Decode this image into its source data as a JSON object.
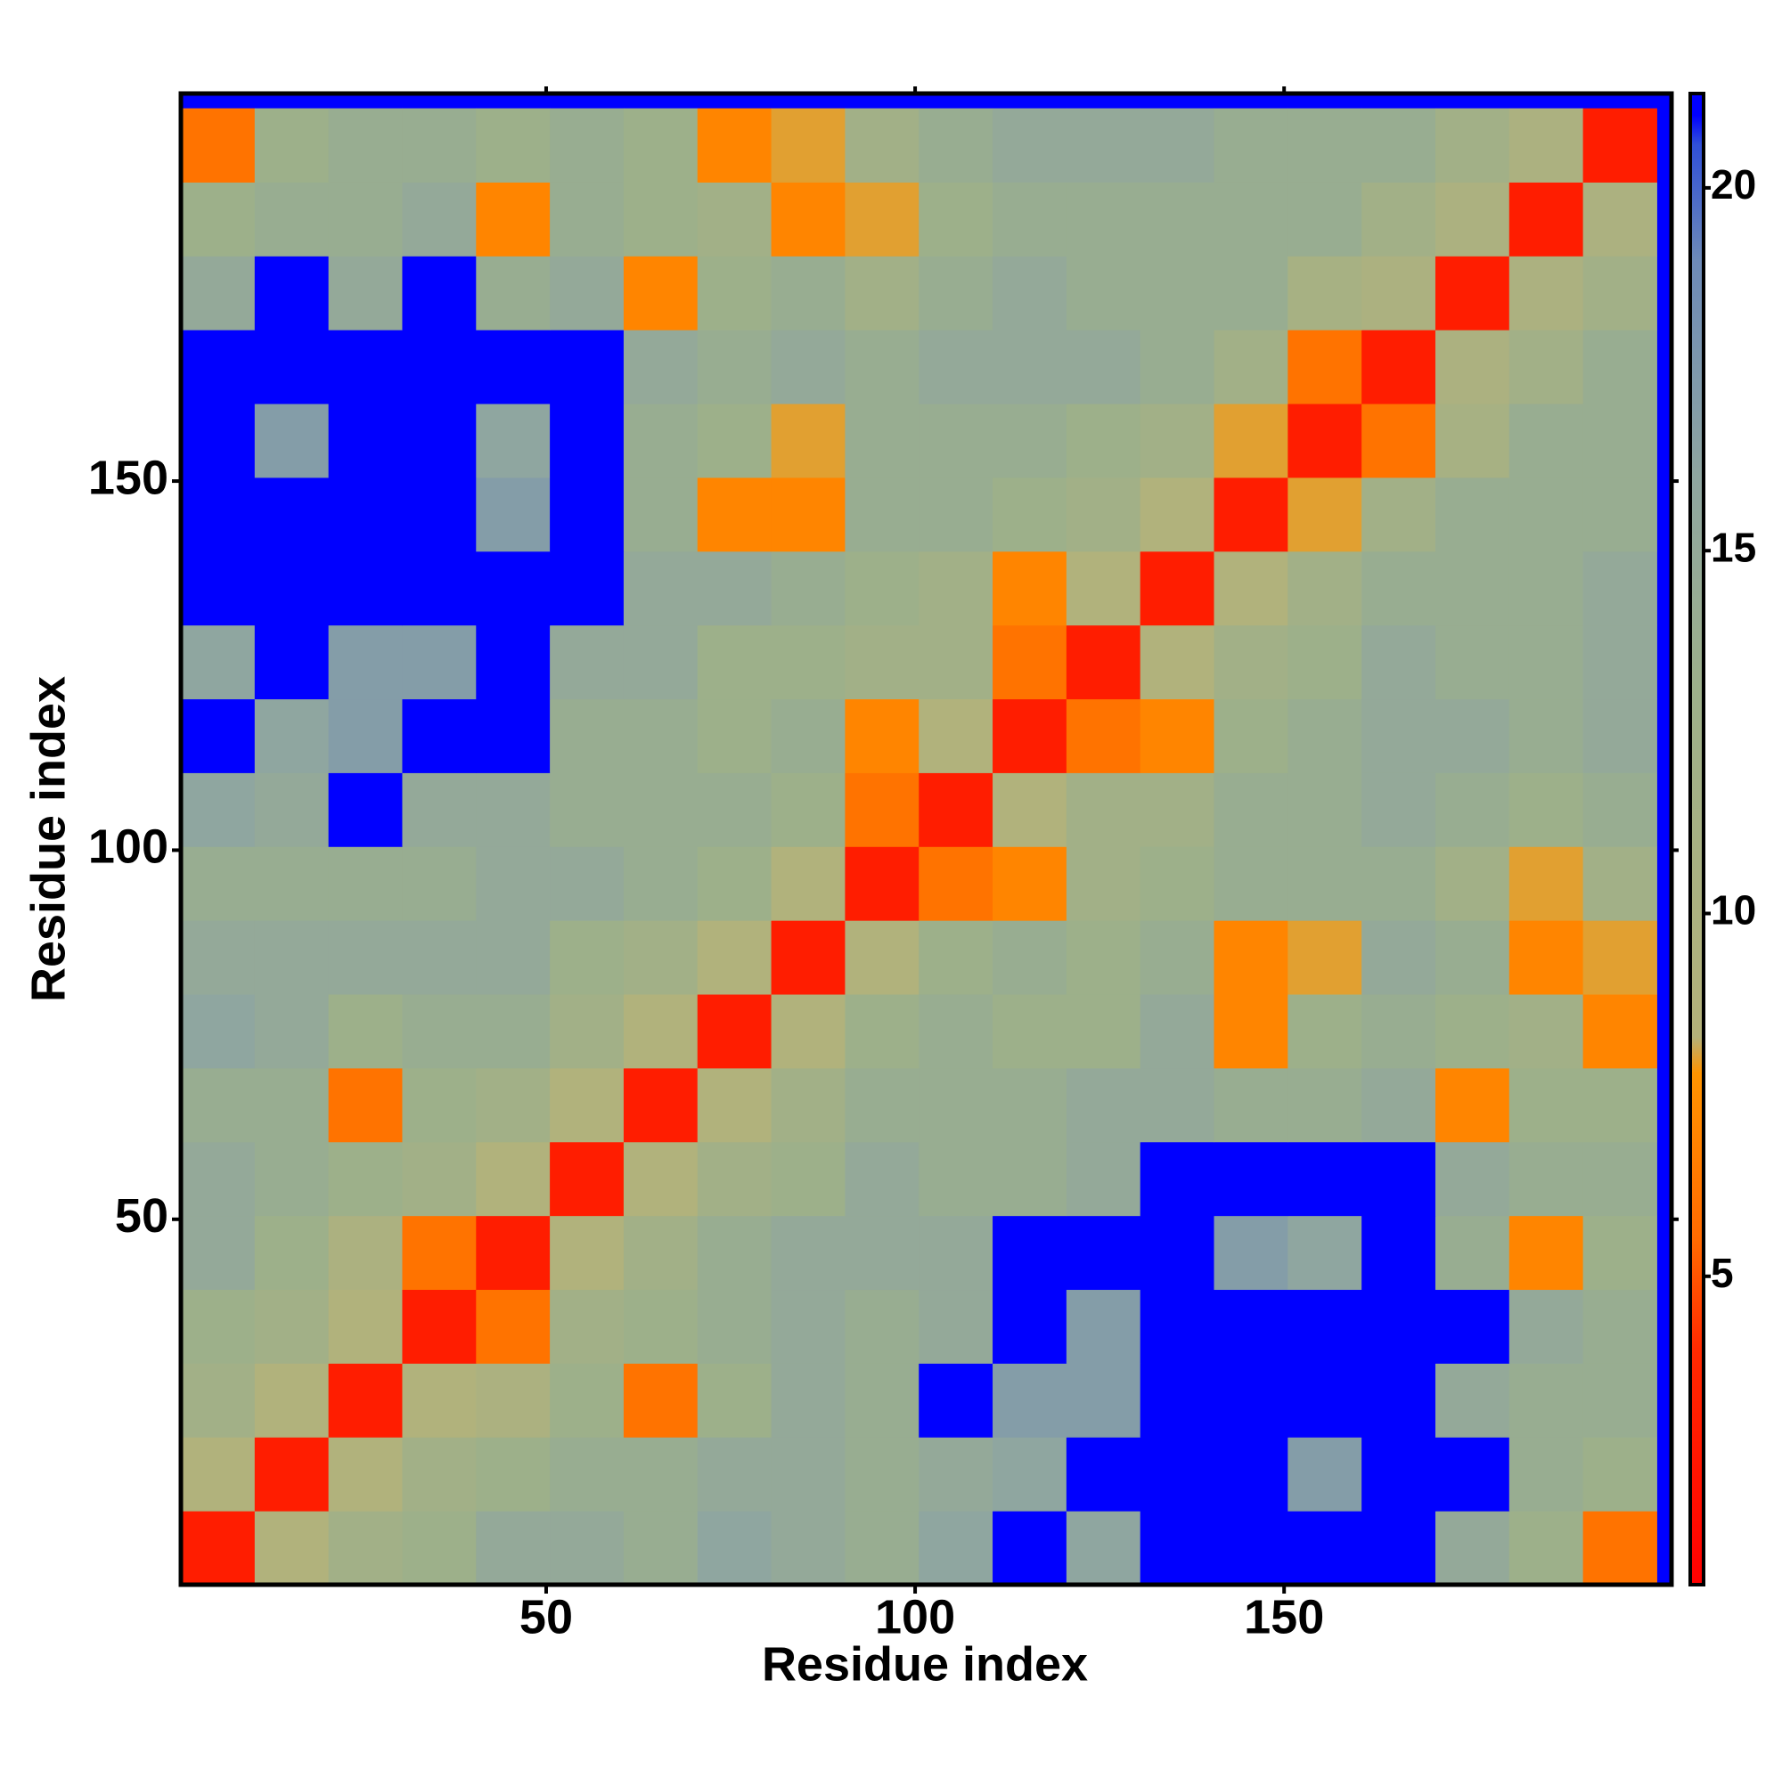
{
  "chart_data": {
    "type": "heatmap",
    "xlabel": "Residue index",
    "ylabel": "Residue index",
    "x": [
      5.5,
      15.5,
      25.5,
      35.5,
      45.5,
      55.5,
      65.5,
      75.5,
      85.5,
      95.5,
      105.5,
      115.5,
      125.5,
      135.5,
      145.5,
      155.5,
      165.5,
      175.5,
      185.5,
      195.5
    ],
    "y": [
      5.5,
      15.5,
      25.5,
      35.5,
      45.5,
      55.5,
      65.5,
      75.5,
      85.5,
      95.5,
      105.5,
      115.5,
      125.5,
      135.5,
      145.5,
      155.5,
      165.5,
      175.5,
      185.5,
      195.5
    ],
    "z": [
      [
        3,
        9,
        12,
        13,
        15,
        15,
        14,
        16,
        15,
        14,
        16,
        21,
        16,
        21,
        21,
        21,
        21,
        15,
        13,
        6
      ],
      [
        9,
        3,
        9,
        12,
        13,
        14,
        14,
        15,
        15,
        14,
        15,
        16,
        21,
        21,
        21,
        17,
        21,
        21,
        14,
        13
      ],
      [
        12,
        9,
        3,
        9,
        10,
        13,
        6,
        13,
        15,
        14,
        21,
        17,
        17,
        21,
        21,
        21,
        21,
        15,
        14,
        14
      ],
      [
        13,
        12,
        9,
        3,
        6,
        12,
        13,
        14,
        15,
        14,
        15,
        21,
        17,
        21,
        21,
        21,
        21,
        21,
        15,
        14
      ],
      [
        15,
        13,
        10,
        6,
        3,
        9,
        12,
        14,
        15,
        15,
        15,
        21,
        21,
        21,
        17,
        16,
        21,
        14,
        7,
        13
      ],
      [
        15,
        14,
        13,
        12,
        9,
        3,
        9,
        12,
        13,
        15,
        14,
        14,
        15,
        21,
        21,
        21,
        21,
        15,
        14,
        14
      ],
      [
        14,
        14,
        6,
        13,
        12,
        9,
        3,
        9,
        12,
        14,
        14,
        14,
        15,
        15,
        14,
        14,
        15,
        7,
        13,
        13
      ],
      [
        16,
        15,
        13,
        14,
        14,
        12,
        9,
        3,
        9,
        13,
        14,
        13,
        13,
        15,
        7,
        13,
        14,
        13,
        12,
        7
      ],
      [
        15,
        15,
        15,
        15,
        15,
        13,
        12,
        9,
        3,
        9,
        13,
        14,
        13,
        14,
        7,
        8,
        15,
        14,
        7,
        8
      ],
      [
        14,
        14,
        14,
        14,
        15,
        15,
        14,
        13,
        9,
        3,
        6,
        7,
        12,
        13,
        14,
        14,
        14,
        12,
        8,
        12
      ],
      [
        16,
        15,
        21,
        15,
        15,
        14,
        14,
        14,
        13,
        6,
        3,
        9,
        12,
        12,
        14,
        14,
        15,
        14,
        13,
        14
      ],
      [
        21,
        16,
        17,
        21,
        21,
        14,
        14,
        13,
        14,
        7,
        9,
        3,
        6,
        7,
        13,
        14,
        15,
        15,
        14,
        15
      ],
      [
        16,
        21,
        17,
        17,
        21,
        15,
        15,
        13,
        13,
        12,
        12,
        6,
        3,
        9,
        12,
        13,
        15,
        14,
        14,
        15
      ],
      [
        21,
        21,
        21,
        21,
        21,
        21,
        15,
        15,
        14,
        13,
        12,
        7,
        9,
        3,
        9,
        12,
        14,
        14,
        14,
        15
      ],
      [
        21,
        21,
        21,
        21,
        17,
        21,
        14,
        7,
        7,
        14,
        14,
        13,
        12,
        9,
        3,
        8,
        12,
        14,
        14,
        14
      ],
      [
        21,
        17,
        21,
        21,
        16,
        21,
        14,
        13,
        8,
        14,
        14,
        14,
        13,
        12,
        8,
        3,
        6,
        11,
        14,
        14
      ],
      [
        21,
        21,
        21,
        21,
        21,
        21,
        15,
        14,
        15,
        14,
        15,
        15,
        15,
        14,
        12,
        6,
        3,
        10,
        12,
        14
      ],
      [
        15,
        21,
        15,
        21,
        14,
        15,
        7,
        13,
        14,
        12,
        14,
        15,
        14,
        14,
        14,
        11,
        10,
        3,
        10,
        12
      ],
      [
        13,
        14,
        14,
        15,
        7,
        14,
        13,
        12,
        7,
        8,
        13,
        14,
        14,
        14,
        14,
        14,
        12,
        10,
        3,
        10
      ],
      [
        6,
        13,
        14,
        14,
        13,
        14,
        13,
        7,
        8,
        12,
        14,
        15,
        15,
        15,
        14,
        14,
        14,
        12,
        10,
        3
      ]
    ],
    "xlim": [
      0.5,
      202.5
    ],
    "ylim": [
      0.5,
      202.5
    ],
    "xticks": [
      50,
      100,
      150
    ],
    "yticks": [
      50,
      100,
      150
    ],
    "zlim": [
      0.75,
      21.3
    ],
    "zticks": [
      5,
      10,
      15,
      20
    ],
    "colorscale": [
      [
        0.75,
        "#ff0000"
      ],
      [
        4,
        "#ff2a00"
      ],
      [
        5.5,
        "#ff6a00"
      ],
      [
        7.8,
        "#ff9400"
      ],
      [
        8.3,
        "#b4b27a"
      ],
      [
        13,
        "#9db08a"
      ],
      [
        16,
        "#8fa6a0"
      ],
      [
        19,
        "#6d8ab8"
      ],
      [
        20.6,
        "#3050d8"
      ],
      [
        21,
        "#0000ff"
      ],
      [
        21.3,
        "#0000ff"
      ]
    ]
  }
}
